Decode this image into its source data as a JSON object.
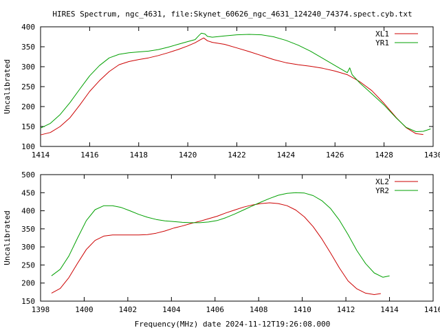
{
  "title": "HIRES Spectrum, ngc_4631, file:Skynet_60626_ngc_4631_124240_74374.spect.cyb.txt",
  "xlabel_bottom": "Frequency(MHz) date 2024-11-12T19:26:08.000",
  "colors": {
    "red": "#cc0000",
    "green": "#00a000",
    "axis": "#000000",
    "background": "#ffffff"
  },
  "chart_data": [
    {
      "type": "line",
      "title": "HIRES Spectrum, ngc_4631, file:Skynet_60626_ngc_4631_124240_74374.spect.cyb.txt",
      "xlabel": "",
      "ylabel": "Uncalibrated",
      "xlim": [
        1414,
        1430
      ],
      "ylim": [
        100,
        400
      ],
      "xticks": [
        1414,
        1416,
        1418,
        1420,
        1422,
        1424,
        1426,
        1428,
        1430
      ],
      "yticks": [
        100,
        150,
        200,
        250,
        300,
        350,
        400
      ],
      "grid": false,
      "legend": "top-right",
      "series": [
        {
          "name": "XL1",
          "color": "#cc0000",
          "points": [
            [
              1414.0,
              129
            ],
            [
              1414.4,
              135
            ],
            [
              1414.8,
              150
            ],
            [
              1415.2,
              172
            ],
            [
              1415.6,
              204
            ],
            [
              1416.0,
              238
            ],
            [
              1416.4,
              265
            ],
            [
              1416.8,
              288
            ],
            [
              1417.2,
              305
            ],
            [
              1417.6,
              313
            ],
            [
              1418.0,
              318
            ],
            [
              1418.4,
              322
            ],
            [
              1418.8,
              328
            ],
            [
              1419.2,
              335
            ],
            [
              1419.6,
              343
            ],
            [
              1420.0,
              352
            ],
            [
              1420.3,
              360
            ],
            [
              1420.5,
              367
            ],
            [
              1420.65,
              372
            ],
            [
              1420.8,
              365
            ],
            [
              1421.0,
              361
            ],
            [
              1421.5,
              356
            ],
            [
              1422.0,
              347
            ],
            [
              1422.5,
              338
            ],
            [
              1423.0,
              328
            ],
            [
              1423.5,
              318
            ],
            [
              1424.0,
              310
            ],
            [
              1424.5,
              305
            ],
            [
              1425.0,
              301
            ],
            [
              1425.5,
              296
            ],
            [
              1426.0,
              289
            ],
            [
              1426.5,
              280
            ],
            [
              1427.0,
              263
            ],
            [
              1427.5,
              240
            ],
            [
              1428.0,
              208
            ],
            [
              1428.5,
              172
            ],
            [
              1428.9,
              147
            ],
            [
              1429.3,
              132
            ],
            [
              1429.6,
              130
            ]
          ]
        },
        {
          "name": "YR1",
          "color": "#00a000",
          "points": [
            [
              1414.0,
              146
            ],
            [
              1414.4,
              158
            ],
            [
              1414.8,
              180
            ],
            [
              1415.2,
              210
            ],
            [
              1415.6,
              244
            ],
            [
              1416.0,
              277
            ],
            [
              1416.4,
              303
            ],
            [
              1416.8,
              322
            ],
            [
              1417.2,
              331
            ],
            [
              1417.6,
              335
            ],
            [
              1418.0,
              337
            ],
            [
              1418.4,
              339
            ],
            [
              1418.8,
              343
            ],
            [
              1419.2,
              349
            ],
            [
              1419.6,
              356
            ],
            [
              1420.0,
              363
            ],
            [
              1420.3,
              368
            ],
            [
              1420.45,
              378
            ],
            [
              1420.55,
              384
            ],
            [
              1420.7,
              382
            ],
            [
              1420.8,
              376
            ],
            [
              1421.0,
              374
            ],
            [
              1421.5,
              377
            ],
            [
              1422.0,
              380
            ],
            [
              1422.5,
              381
            ],
            [
              1423.0,
              380
            ],
            [
              1423.5,
              375
            ],
            [
              1424.0,
              366
            ],
            [
              1424.5,
              354
            ],
            [
              1425.0,
              339
            ],
            [
              1425.5,
              321
            ],
            [
              1426.0,
              303
            ],
            [
              1426.5,
              285
            ],
            [
              1426.6,
              297
            ],
            [
              1426.7,
              280
            ],
            [
              1427.0,
              260
            ],
            [
              1427.5,
              232
            ],
            [
              1428.0,
              204
            ],
            [
              1428.5,
              171
            ],
            [
              1428.9,
              148
            ],
            [
              1429.3,
              137
            ],
            [
              1429.6,
              138
            ],
            [
              1429.9,
              144
            ]
          ]
        }
      ]
    },
    {
      "type": "line",
      "title": "",
      "xlabel": "Frequency(MHz) date 2024-11-12T19:26:08.000",
      "ylabel": "Uncalibrated",
      "xlim": [
        1398,
        1416
      ],
      "ylim": [
        150,
        500
      ],
      "xticks": [
        1398,
        1400,
        1402,
        1404,
        1406,
        1408,
        1410,
        1412,
        1414,
        1416
      ],
      "yticks": [
        150,
        200,
        250,
        300,
        350,
        400,
        450,
        500
      ],
      "grid": false,
      "legend": "top-right",
      "series": [
        {
          "name": "XL2",
          "color": "#cc0000",
          "points": [
            [
              1398.5,
              172
            ],
            [
              1398.9,
              185
            ],
            [
              1399.3,
              215
            ],
            [
              1399.7,
              255
            ],
            [
              1400.1,
              293
            ],
            [
              1400.5,
              318
            ],
            [
              1400.9,
              330
            ],
            [
              1401.3,
              333
            ],
            [
              1401.7,
              333
            ],
            [
              1402.1,
              333
            ],
            [
              1402.5,
              333
            ],
            [
              1402.9,
              334
            ],
            [
              1403.3,
              338
            ],
            [
              1403.7,
              344
            ],
            [
              1404.1,
              352
            ],
            [
              1404.5,
              358
            ],
            [
              1404.9,
              365
            ],
            [
              1405.3,
              371
            ],
            [
              1405.7,
              378
            ],
            [
              1406.1,
              385
            ],
            [
              1406.5,
              394
            ],
            [
              1406.9,
              402
            ],
            [
              1407.3,
              410
            ],
            [
              1407.7,
              416
            ],
            [
              1408.1,
              420
            ],
            [
              1408.5,
              422
            ],
            [
              1408.9,
              420
            ],
            [
              1409.3,
              414
            ],
            [
              1409.7,
              402
            ],
            [
              1410.1,
              383
            ],
            [
              1410.5,
              356
            ],
            [
              1410.9,
              322
            ],
            [
              1411.3,
              283
            ],
            [
              1411.7,
              242
            ],
            [
              1412.1,
              206
            ],
            [
              1412.5,
              184
            ],
            [
              1412.9,
              172
            ],
            [
              1413.3,
              168
            ],
            [
              1413.6,
              171
            ]
          ]
        },
        {
          "name": "YR2",
          "color": "#00a000",
          "points": [
            [
              1398.5,
              220
            ],
            [
              1398.9,
              238
            ],
            [
              1399.3,
              275
            ],
            [
              1399.7,
              325
            ],
            [
              1400.1,
              373
            ],
            [
              1400.5,
              403
            ],
            [
              1400.9,
              414
            ],
            [
              1401.3,
              414
            ],
            [
              1401.7,
              409
            ],
            [
              1402.1,
              400
            ],
            [
              1402.5,
              390
            ],
            [
              1402.9,
              382
            ],
            [
              1403.3,
              376
            ],
            [
              1403.7,
              372
            ],
            [
              1404.1,
              370
            ],
            [
              1404.5,
              368
            ],
            [
              1404.9,
              367
            ],
            [
              1405.3,
              367
            ],
            [
              1405.7,
              369
            ],
            [
              1406.1,
              373
            ],
            [
              1406.5,
              381
            ],
            [
              1406.9,
              391
            ],
            [
              1407.3,
              402
            ],
            [
              1407.7,
              413
            ],
            [
              1408.1,
              424
            ],
            [
              1408.5,
              434
            ],
            [
              1408.9,
              443
            ],
            [
              1409.3,
              448
            ],
            [
              1409.7,
              450
            ],
            [
              1410.1,
              449
            ],
            [
              1410.5,
              442
            ],
            [
              1410.9,
              428
            ],
            [
              1411.3,
              406
            ],
            [
              1411.7,
              374
            ],
            [
              1412.1,
              334
            ],
            [
              1412.5,
              290
            ],
            [
              1412.9,
              254
            ],
            [
              1413.3,
              228
            ],
            [
              1413.7,
              216
            ],
            [
              1414.0,
              220
            ]
          ]
        }
      ]
    }
  ]
}
